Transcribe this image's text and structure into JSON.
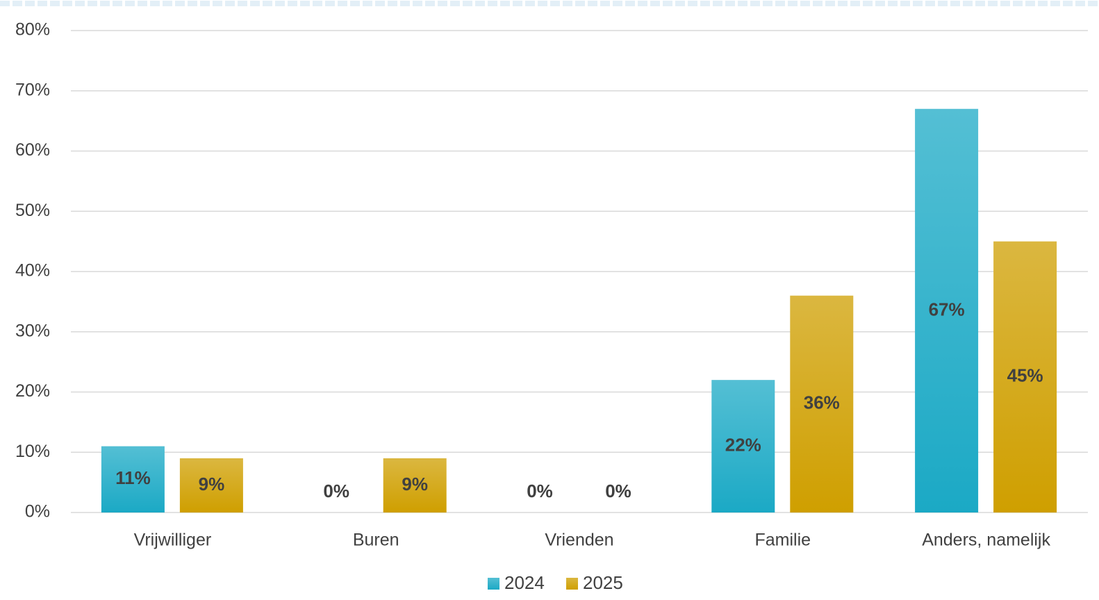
{
  "chart_data": {
    "type": "bar",
    "categories": [
      "Vrijwilliger",
      "Buren",
      "Vrienden",
      "Familie",
      "Anders, namelijk"
    ],
    "series": [
      {
        "name": "2024",
        "color": "#1ba9c5",
        "values": [
          11,
          0,
          0,
          22,
          67
        ],
        "value_labels": [
          "11%",
          "0%",
          "0%",
          "22%",
          "67%"
        ]
      },
      {
        "name": "2025",
        "color": "#cf9f00",
        "values": [
          9,
          9,
          0,
          36,
          45
        ],
        "value_labels": [
          "9%",
          "9%",
          "0%",
          "36%",
          "45%"
        ]
      }
    ],
    "ylim": [
      0,
      80
    ],
    "yticks": [
      {
        "value": 0,
        "label": "0%"
      },
      {
        "value": 10,
        "label": "10%"
      },
      {
        "value": 20,
        "label": "20%"
      },
      {
        "value": 30,
        "label": "30%"
      },
      {
        "value": 40,
        "label": "40%"
      },
      {
        "value": 50,
        "label": "50%"
      },
      {
        "value": 60,
        "label": "60%"
      },
      {
        "value": 70,
        "label": "70%"
      },
      {
        "value": 80,
        "label": "80%"
      }
    ],
    "grid": true,
    "legend": "bottom"
  }
}
